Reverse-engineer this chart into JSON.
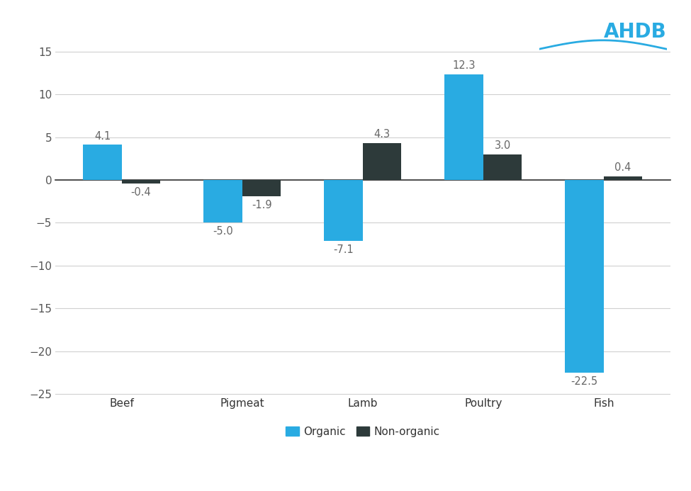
{
  "categories": [
    "Beef",
    "Pigmeat",
    "Lamb",
    "Poultry",
    "Fish"
  ],
  "organic": [
    4.1,
    -5.0,
    -7.1,
    12.3,
    -22.5
  ],
  "non_organic": [
    -0.4,
    -1.9,
    4.3,
    3.0,
    0.4
  ],
  "organic_color": "#29ABE2",
  "non_organic_color": "#2D3A3A",
  "ylim": [
    -26,
    17
  ],
  "yticks": [
    -25,
    -20,
    -15,
    -10,
    -5,
    0,
    5,
    10,
    15
  ],
  "bar_width": 0.32,
  "legend_labels": [
    "Organic",
    "Non-organic"
  ],
  "background_color": "#ffffff",
  "grid_color": "#d0d0d0",
  "label_fontsize": 10.5,
  "tick_fontsize": 11,
  "legend_fontsize": 11,
  "ahdb_color": "#29ABE2"
}
